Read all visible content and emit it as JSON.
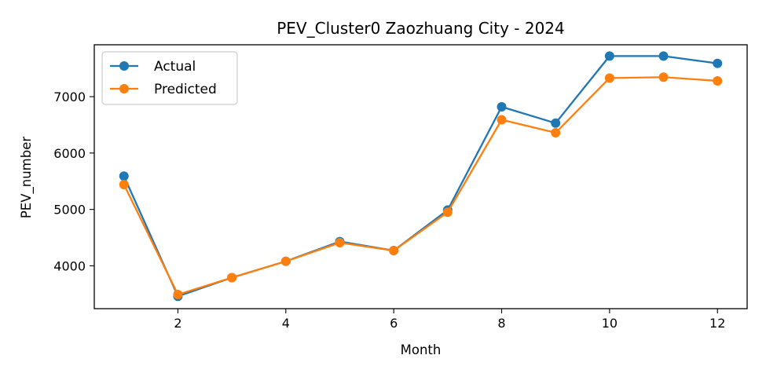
{
  "chart_data": {
    "type": "line",
    "title": "PEV_Cluster0 Zaozhuang City - 2024",
    "xlabel": "Month",
    "ylabel": "PEV_number",
    "x": [
      1,
      2,
      3,
      4,
      5,
      6,
      7,
      8,
      9,
      10,
      11,
      12
    ],
    "xticks": [
      2,
      4,
      6,
      8,
      10,
      12
    ],
    "yticks": [
      4000,
      5000,
      6000,
      7000
    ],
    "xlim": [
      0.45,
      12.55
    ],
    "ylim": [
      3240,
      7920
    ],
    "grid": false,
    "legend_position": "top-left",
    "series": [
      {
        "name": "Actual",
        "color": "#1f77b4",
        "values": [
          5590,
          3460,
          3790,
          4080,
          4430,
          4270,
          4990,
          6820,
          6530,
          7720,
          7720,
          7590
        ]
      },
      {
        "name": "Predicted",
        "color": "#ff7f0e",
        "values": [
          5440,
          3490,
          3790,
          4080,
          4410,
          4270,
          4950,
          6590,
          6360,
          7330,
          7345,
          7280
        ]
      }
    ]
  }
}
